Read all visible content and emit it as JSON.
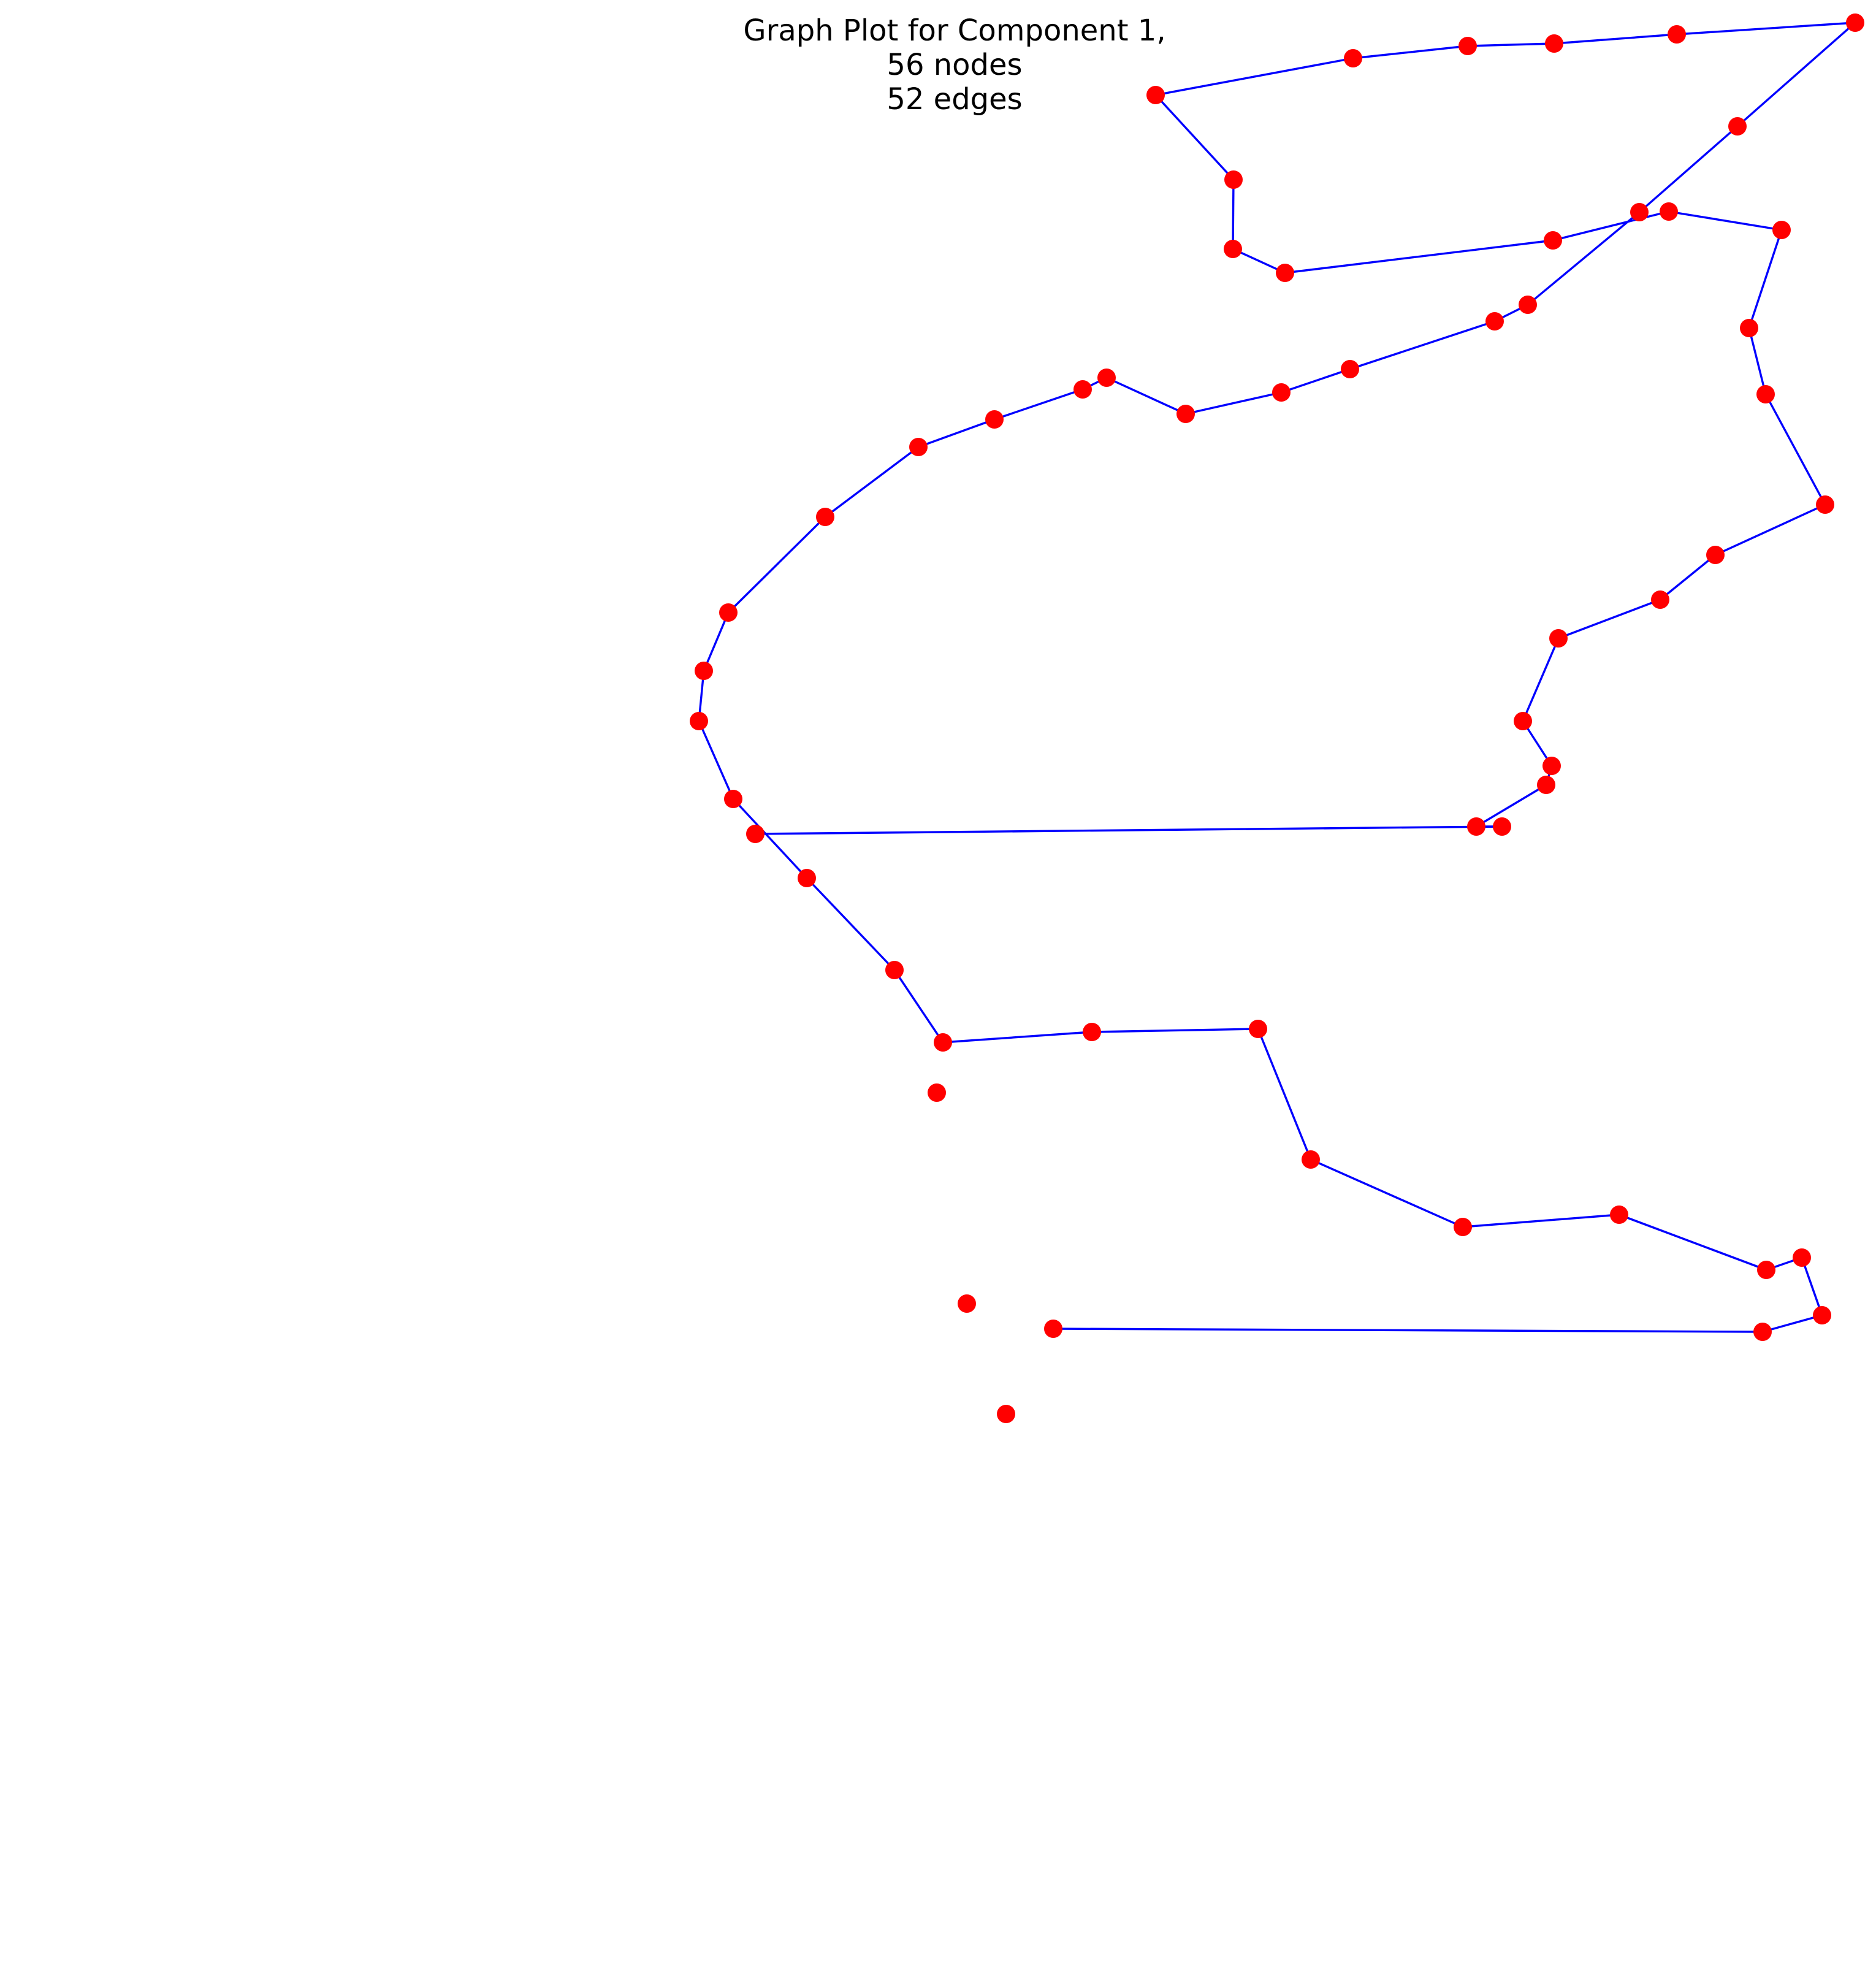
{
  "title": {
    "line1": "Graph Plot for Component 1,",
    "line2": "56 nodes",
    "line3": "52 edges"
  },
  "colors": {
    "node": "#ff0000",
    "edge": "#0000ff",
    "background": "#ffffff"
  },
  "graph": {
    "nodes": [
      {
        "id": "n1"
      },
      {
        "id": "n2"
      },
      {
        "id": "n3"
      },
      {
        "id": "n4"
      },
      {
        "id": "n5"
      },
      {
        "id": "n6"
      },
      {
        "id": "n7"
      },
      {
        "id": "n8"
      },
      {
        "id": "n9"
      },
      {
        "id": "n10"
      },
      {
        "id": "n11"
      },
      {
        "id": "n12"
      },
      {
        "id": "n13"
      },
      {
        "id": "n14"
      },
      {
        "id": "n15"
      },
      {
        "id": "n16"
      },
      {
        "id": "n17"
      },
      {
        "id": "n18"
      },
      {
        "id": "n19"
      },
      {
        "id": "n20"
      },
      {
        "id": "n21"
      },
      {
        "id": "n22"
      },
      {
        "id": "n23"
      },
      {
        "id": "n24"
      },
      {
        "id": "n25"
      },
      {
        "id": "n26"
      },
      {
        "id": "n27"
      },
      {
        "id": "n28"
      },
      {
        "id": "n29"
      },
      {
        "id": "n30"
      },
      {
        "id": "n31"
      },
      {
        "id": "n32"
      },
      {
        "id": "n33"
      },
      {
        "id": "n34"
      },
      {
        "id": "n35"
      },
      {
        "id": "n36"
      },
      {
        "id": "n37"
      },
      {
        "id": "n38"
      },
      {
        "id": "n39"
      },
      {
        "id": "n40"
      },
      {
        "id": "n41"
      },
      {
        "id": "n42"
      },
      {
        "id": "n43"
      },
      {
        "id": "n44"
      },
      {
        "id": "n45"
      },
      {
        "id": "n46"
      },
      {
        "id": "n47"
      },
      {
        "id": "n48"
      },
      {
        "id": "n49"
      },
      {
        "id": "n50"
      },
      {
        "id": "n51"
      },
      {
        "id": "n52"
      },
      {
        "id": "n53"
      },
      {
        "id": "n54"
      },
      {
        "id": "n55"
      },
      {
        "id": "n56"
      }
    ],
    "edges": [
      [
        "n1",
        "n2"
      ],
      [
        "n2",
        "n3"
      ],
      [
        "n3",
        "n4"
      ],
      [
        "n4",
        "n5"
      ],
      [
        "n5",
        "n6"
      ],
      [
        "n6",
        "n7"
      ],
      [
        "n7",
        "n8"
      ],
      [
        "n8",
        "n9"
      ],
      [
        "n9",
        "n10"
      ],
      [
        "n10",
        "n11"
      ],
      [
        "n11",
        "n12"
      ],
      [
        "n12",
        "n13"
      ],
      [
        "n13",
        "n14"
      ],
      [
        "n14",
        "n15"
      ],
      [
        "n15",
        "n16"
      ],
      [
        "n16",
        "n17"
      ],
      [
        "n17",
        "n18"
      ],
      [
        "n18",
        "n19"
      ],
      [
        "n19",
        "n20"
      ],
      [
        "n20",
        "n21"
      ],
      [
        "n21",
        "n22"
      ],
      [
        "n22",
        "n23"
      ],
      [
        "n23",
        "n24"
      ],
      [
        "n24",
        "n25"
      ],
      [
        "n25",
        "n26"
      ],
      [
        "n26",
        "n27"
      ],
      [
        "n27",
        "n28"
      ],
      [
        "n28",
        "n29"
      ],
      [
        "n29",
        "n30"
      ],
      [
        "n30",
        "n31"
      ],
      [
        "n31",
        "n32"
      ],
      [
        "n32",
        "n33"
      ],
      [
        "n33",
        "n34"
      ],
      [
        "n34",
        "n35"
      ],
      [
        "n35",
        "n36"
      ],
      [
        "n36",
        "n37"
      ],
      [
        "n37",
        "n38"
      ],
      [
        "n38",
        "n39"
      ],
      [
        "n39",
        "n40"
      ],
      [
        "n40",
        "n41"
      ],
      [
        "n41",
        "n42"
      ],
      [
        "n42",
        "n43"
      ],
      [
        "n43",
        "n44"
      ],
      [
        "n44",
        "n45"
      ],
      [
        "n45",
        "n46"
      ],
      [
        "n46",
        "n47"
      ],
      [
        "n47",
        "n48"
      ],
      [
        "n48",
        "n49"
      ],
      [
        "n49",
        "n50"
      ],
      [
        "n50",
        "n51"
      ],
      [
        "n51",
        "n52"
      ],
      [
        "n52",
        "n53"
      ]
    ]
  }
}
